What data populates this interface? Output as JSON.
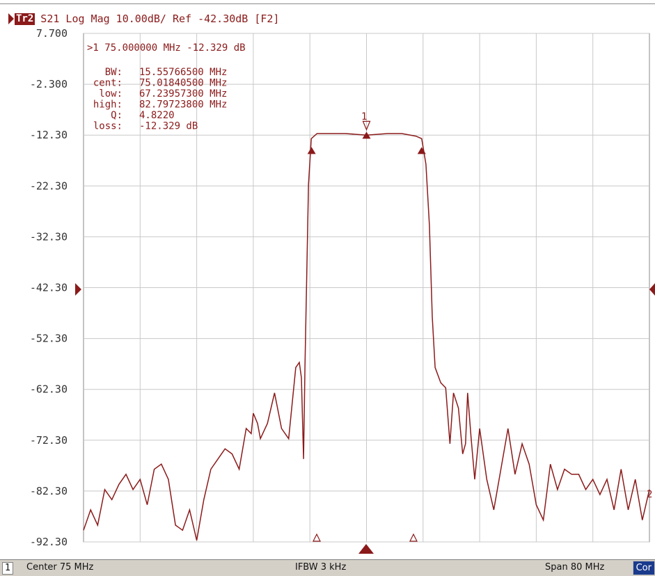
{
  "trace": {
    "badge": "Tr2",
    "header": "S21 Log Mag 10.00dB/ Ref -42.30dB [F2]"
  },
  "marker_panel": {
    "active": ">1  75.000000 MHz -12.329 dB",
    "stats": [
      {
        "label": "BW:",
        "value": "15.55766500 MHz"
      },
      {
        "label": "cent:",
        "value": "75.01840500 MHz"
      },
      {
        "label": "low:",
        "value": "67.23957300 MHz"
      },
      {
        "label": "high:",
        "value": "82.79723800 MHz"
      },
      {
        "label": "Q:",
        "value": "4.8220"
      },
      {
        "label": "loss:",
        "value": "-12.329 dB"
      }
    ],
    "marker_label": "1",
    "right_edge_label": "2"
  },
  "status": {
    "channel": "1",
    "center": "Center 75 MHz",
    "ifbw": "IFBW 3 kHz",
    "span": "Span 80 MHz",
    "cor": "Cor"
  },
  "colors": {
    "trace": "#8b1a1a",
    "grid": "#c8c8c8",
    "status_bar": "#d4d0c8",
    "cor_badge": "#1a3a8c"
  },
  "chart_data": {
    "type": "line",
    "title": "S21 Log Mag 10.00dB/ Ref -42.30dB [F2]",
    "xlabel": "",
    "ylabel": "",
    "x_unit": "MHz",
    "xlim": [
      35,
      115
    ],
    "ylim": [
      -92.3,
      7.7
    ],
    "yticks": [
      7.7,
      -2.3,
      -12.3,
      -22.3,
      -32.3,
      -42.3,
      -52.3,
      -62.3,
      -72.3,
      -82.3,
      -92.3
    ],
    "ytick_labels": [
      "7.700",
      "-2.300",
      "-12.30",
      "-22.30",
      "-32.30",
      "-42.30",
      "-52.30",
      "-62.30",
      "-72.30",
      "-82.30",
      "-92.30"
    ],
    "reference_level": -42.3,
    "grid": true,
    "series": [
      {
        "x": [
          35,
          36,
          37,
          38,
          39,
          40,
          41,
          42,
          43,
          44,
          45,
          46,
          47,
          48,
          49,
          50,
          51,
          52,
          53,
          54,
          55,
          56,
          57,
          58,
          58.7,
          59,
          59.6,
          60,
          61,
          62,
          63,
          64,
          65,
          65.5,
          65.8,
          66.1,
          66.3,
          66.8,
          67.2,
          68,
          70,
          72,
          75,
          78,
          80,
          82,
          82.8,
          83.4,
          83.9,
          84.3,
          84.7,
          85.5,
          86.2,
          86.8,
          87.3,
          88,
          88.6,
          89,
          89.3,
          89.8,
          90.3,
          91,
          92,
          93,
          94,
          95,
          96,
          97,
          98,
          99,
          100,
          101,
          102,
          103,
          104,
          105,
          106,
          107,
          108,
          109,
          110,
          111,
          112,
          113,
          114,
          115
        ],
        "y": [
          -90,
          -86,
          -89,
          -82,
          -84,
          -81,
          -79,
          -82,
          -80,
          -85,
          -78,
          -77,
          -80,
          -89,
          -90,
          -86,
          -92,
          -84,
          -78,
          -76,
          -74,
          -75,
          -78,
          -70,
          -71,
          -67,
          -69,
          -72,
          -69,
          -63,
          -70,
          -72,
          -58,
          -57,
          -60,
          -76,
          -58,
          -22,
          -13,
          -12,
          -12,
          -12,
          -12.3,
          -12,
          -12,
          -12.5,
          -13,
          -18,
          -30,
          -48,
          -58,
          -61,
          -62,
          -73,
          -63,
          -66,
          -75,
          -73,
          -63,
          -72,
          -80,
          -70,
          -80,
          -86,
          -78,
          -70,
          -79,
          -73,
          -77,
          -85,
          -88,
          -77,
          -82,
          -78,
          -79,
          -79,
          -82,
          -80,
          -83,
          -80,
          -86,
          -78,
          -86,
          -80,
          -88,
          -82
        ]
      }
    ],
    "markers": [
      {
        "id": "1",
        "x": 75,
        "y": -12.329
      },
      {
        "id": "low",
        "x": 67.23957,
        "y": -15.33
      },
      {
        "id": "high",
        "x": 82.79724,
        "y": -15.33
      }
    ]
  }
}
